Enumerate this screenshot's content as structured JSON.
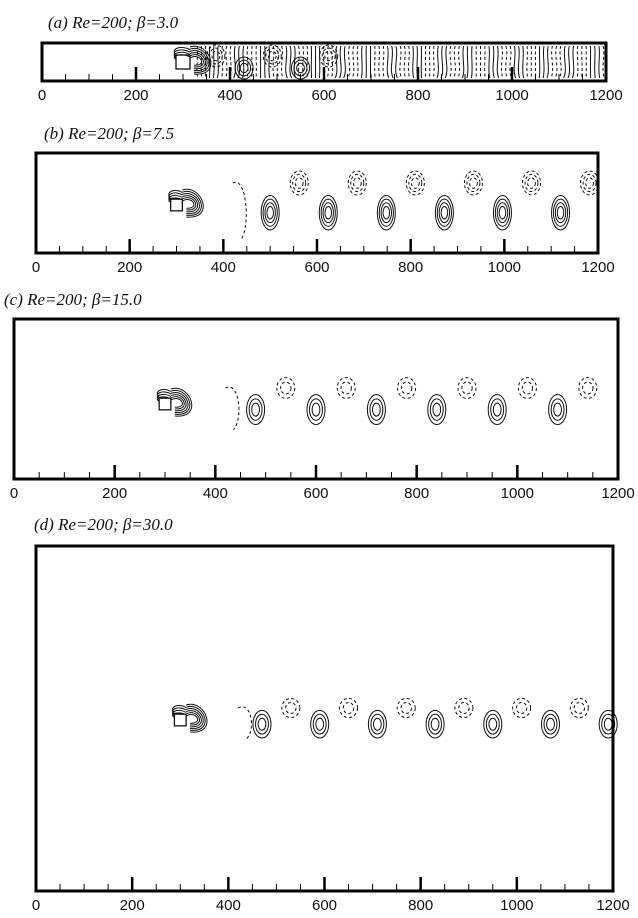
{
  "panels": [
    {
      "id": "a",
      "title": "(a) Re=200; β=3.0",
      "re": 200,
      "beta": 3.0
    },
    {
      "id": "b",
      "title": "(b) Re=200; β=7.5",
      "re": 200,
      "beta": 7.5
    },
    {
      "id": "c",
      "title": "(c) Re=200; β=15.0",
      "re": 200,
      "beta": 15.0
    },
    {
      "id": "d",
      "title": "(d) Re=200; β=30.0",
      "re": 200,
      "beta": 30.0
    }
  ],
  "axis": {
    "xlim": [
      0,
      1200
    ],
    "major_ticks": [
      0,
      200,
      400,
      600,
      800,
      1000,
      1200
    ],
    "tick_labels": [
      "0",
      "200",
      "400",
      "600",
      "800",
      "1000",
      "1200"
    ],
    "minor_step": 50
  },
  "body_position_x": 300,
  "contour_styles": {
    "positive": "solid",
    "negative": "dashed"
  }
}
